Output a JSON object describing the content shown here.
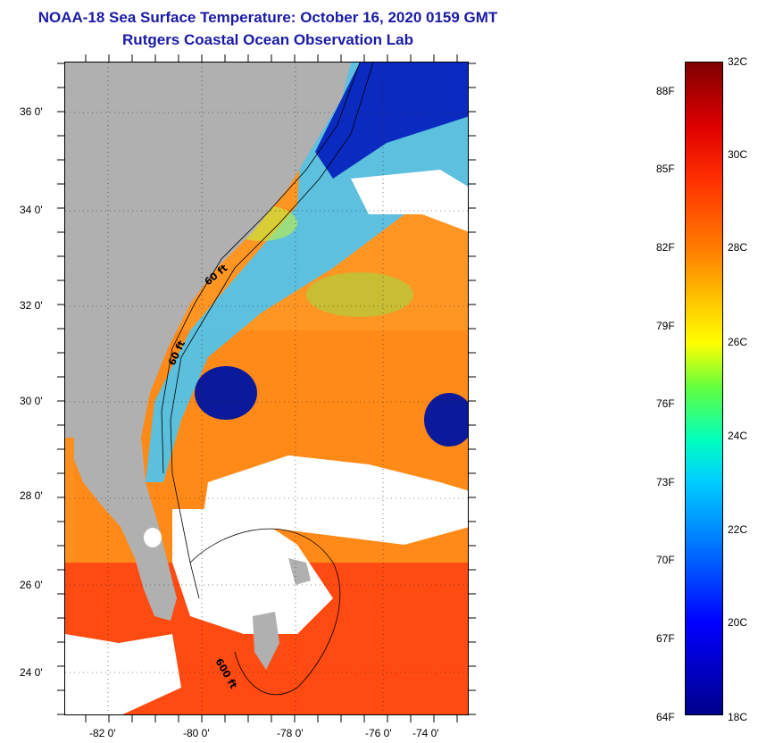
{
  "title": {
    "line1": "NOAA-18 Sea Surface Temperature:  October 16, 2020 0159 GMT",
    "line2": "Rutgers Coastal Ocean Observation Lab"
  },
  "map": {
    "latitude_labels": [
      "36 0'",
      "34 0'",
      "32 0'",
      "30 0'",
      "28 0'",
      "26 0'",
      "24 0'"
    ],
    "longitude_labels": [
      "-82 0'",
      "-80 0'",
      "-78 0'",
      "-76 0'",
      "-74 0'"
    ],
    "latitude_values": [
      36,
      34,
      32,
      30,
      28,
      26,
      24
    ],
    "longitude_values": [
      -82,
      -80,
      -78,
      -76,
      -74
    ],
    "lat_range": [
      23.0,
      37.0
    ],
    "lon_range": [
      -83.0,
      -73.0
    ],
    "contour_labels": [
      "60 ft",
      "60 ft",
      "600 ft"
    ],
    "colors": {
      "land": "#b0b0b0",
      "cloud": "#ffffff",
      "warm": "#ff7a10",
      "hot": "#ff3010",
      "cold": "#0a1aa0",
      "mid": "#40d0ff"
    }
  },
  "colorbar": {
    "celsius_labels": [
      "32C",
      "30C",
      "28C",
      "26C",
      "24C",
      "22C",
      "20C",
      "18C"
    ],
    "fahrenheit_labels": [
      "88F",
      "85F",
      "82F",
      "79F",
      "76F",
      "73F",
      "70F",
      "67F",
      "64F"
    ]
  }
}
